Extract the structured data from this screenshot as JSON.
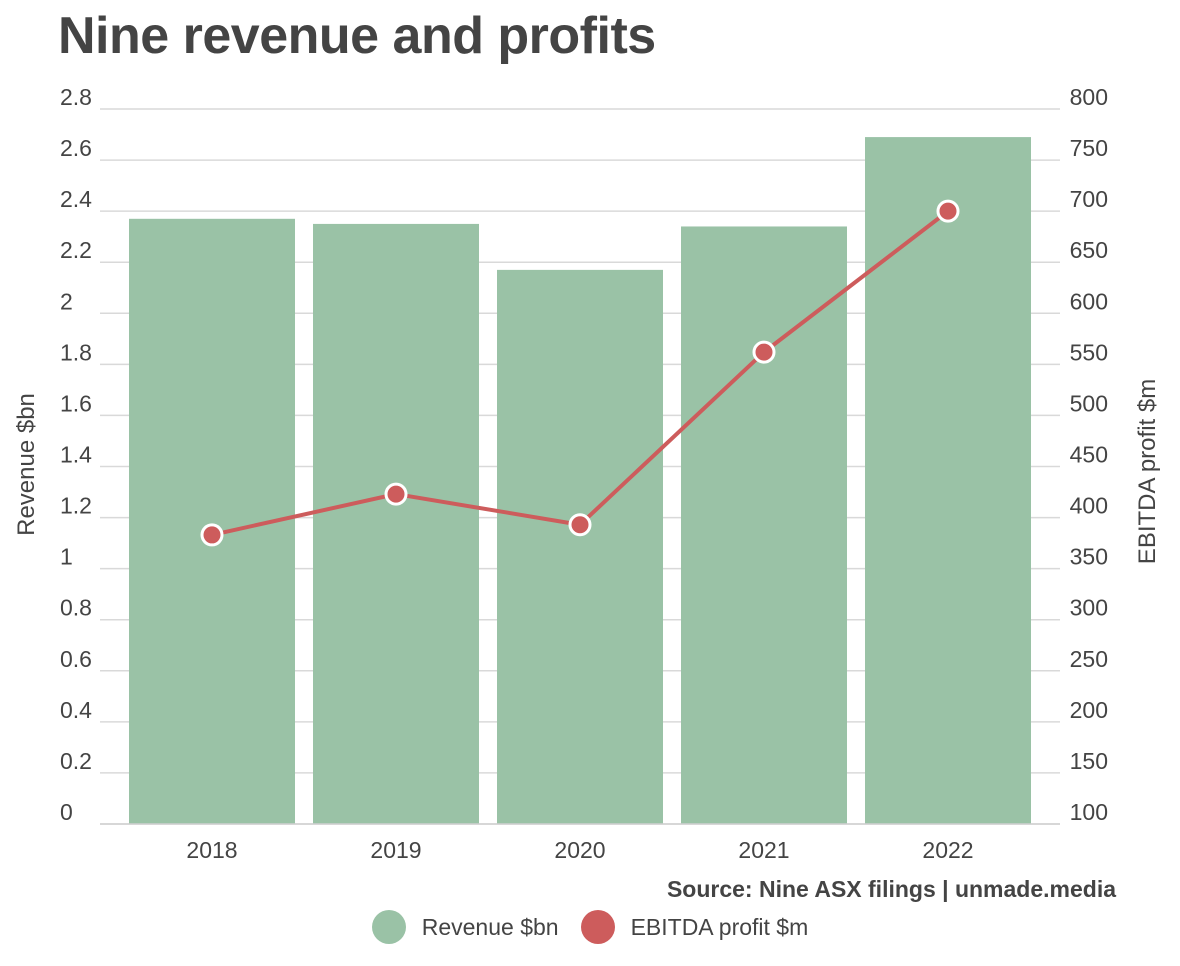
{
  "chart_data": {
    "type": "bar",
    "title": "Nine revenue and profits",
    "categories": [
      "2018",
      "2019",
      "2020",
      "2021",
      "2022"
    ],
    "series": [
      {
        "name": "Revenue $bn",
        "type": "bar",
        "axis": "left",
        "color": "#9ac2a6",
        "values": [
          2.37,
          2.35,
          2.17,
          2.34,
          2.69
        ]
      },
      {
        "name": "EBITDA profit $m",
        "type": "line",
        "axis": "right",
        "color": "#cd5c5c",
        "values": [
          383,
          423,
          393,
          562,
          700
        ]
      }
    ],
    "left_axis": {
      "label": "Revenue $bn",
      "ylim": [
        0,
        2.8
      ],
      "ticks": [
        "0",
        "0.2",
        "0.4",
        "0.6",
        "0.8",
        "1",
        "1.2",
        "1.4",
        "1.6",
        "1.8",
        "2",
        "2.2",
        "2.4",
        "2.6",
        "2.8"
      ]
    },
    "right_axis": {
      "label": "EBITDA profit $m",
      "ylim": [
        100,
        800
      ],
      "ticks": [
        "100",
        "150",
        "200",
        "250",
        "300",
        "350",
        "400",
        "450",
        "500",
        "550",
        "600",
        "650",
        "700",
        "750",
        "800"
      ]
    },
    "grid": true,
    "legend": "bottom-center",
    "source": "Source: Nine ASX filings | unmade.media"
  }
}
